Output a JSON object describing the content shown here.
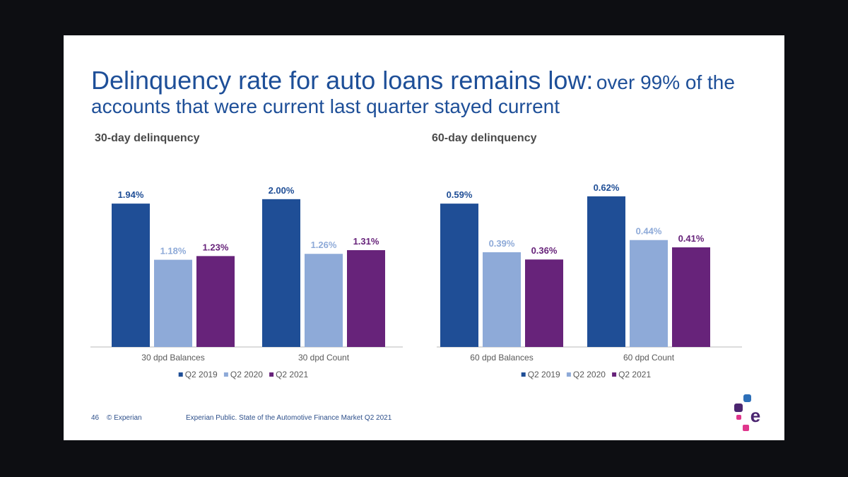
{
  "title": {
    "main": "Delinquency rate for auto loans remains low:",
    "sub_part1": "over 99% of the",
    "sub_part2": "accounts that were current last quarter stayed current"
  },
  "footer": {
    "page_number": "46",
    "copyright": "© Experian",
    "note": "Experian Public.   State of the Automotive Finance Market Q2 2021"
  },
  "colors": {
    "Q2 2019": "#1f4e96",
    "Q2 2020": "#8eaad8",
    "Q2 2021": "#67237a",
    "title": "#1e4f98",
    "brand_dark_purple": "#4b2570",
    "brand_pink": "#e0368c",
    "brand_blue": "#2d6fb8"
  },
  "chart_data": [
    {
      "type": "bar",
      "title": "30-day delinquency",
      "categories": [
        "30 dpd Balances",
        "30 dpd Count"
      ],
      "series": [
        {
          "name": "Q2 2019",
          "values": [
            1.94,
            2.0
          ],
          "labels": [
            "1.94%",
            "2.00%"
          ]
        },
        {
          "name": "Q2 2020",
          "values": [
            1.18,
            1.26
          ],
          "labels": [
            "1.18%",
            "1.26%"
          ]
        },
        {
          "name": "Q2 2021",
          "values": [
            1.23,
            1.31
          ],
          "labels": [
            "1.23%",
            "1.31%"
          ]
        }
      ],
      "ylim": [
        0,
        2.4
      ],
      "legend": "bottom",
      "grid": false
    },
    {
      "type": "bar",
      "title": "60-day delinquency",
      "categories": [
        "60 dpd Balances",
        "60 dpd Count"
      ],
      "series": [
        {
          "name": "Q2 2019",
          "values": [
            0.59,
            0.62
          ],
          "labels": [
            "0.59%",
            "0.62%"
          ]
        },
        {
          "name": "Q2 2020",
          "values": [
            0.39,
            0.44
          ],
          "labels": [
            "0.39%",
            "0.44%"
          ]
        },
        {
          "name": "Q2 2021",
          "values": [
            0.36,
            0.41
          ],
          "labels": [
            "0.36%",
            "0.41%"
          ]
        }
      ],
      "ylim": [
        0,
        0.73
      ],
      "legend": "bottom",
      "grid": false
    }
  ]
}
